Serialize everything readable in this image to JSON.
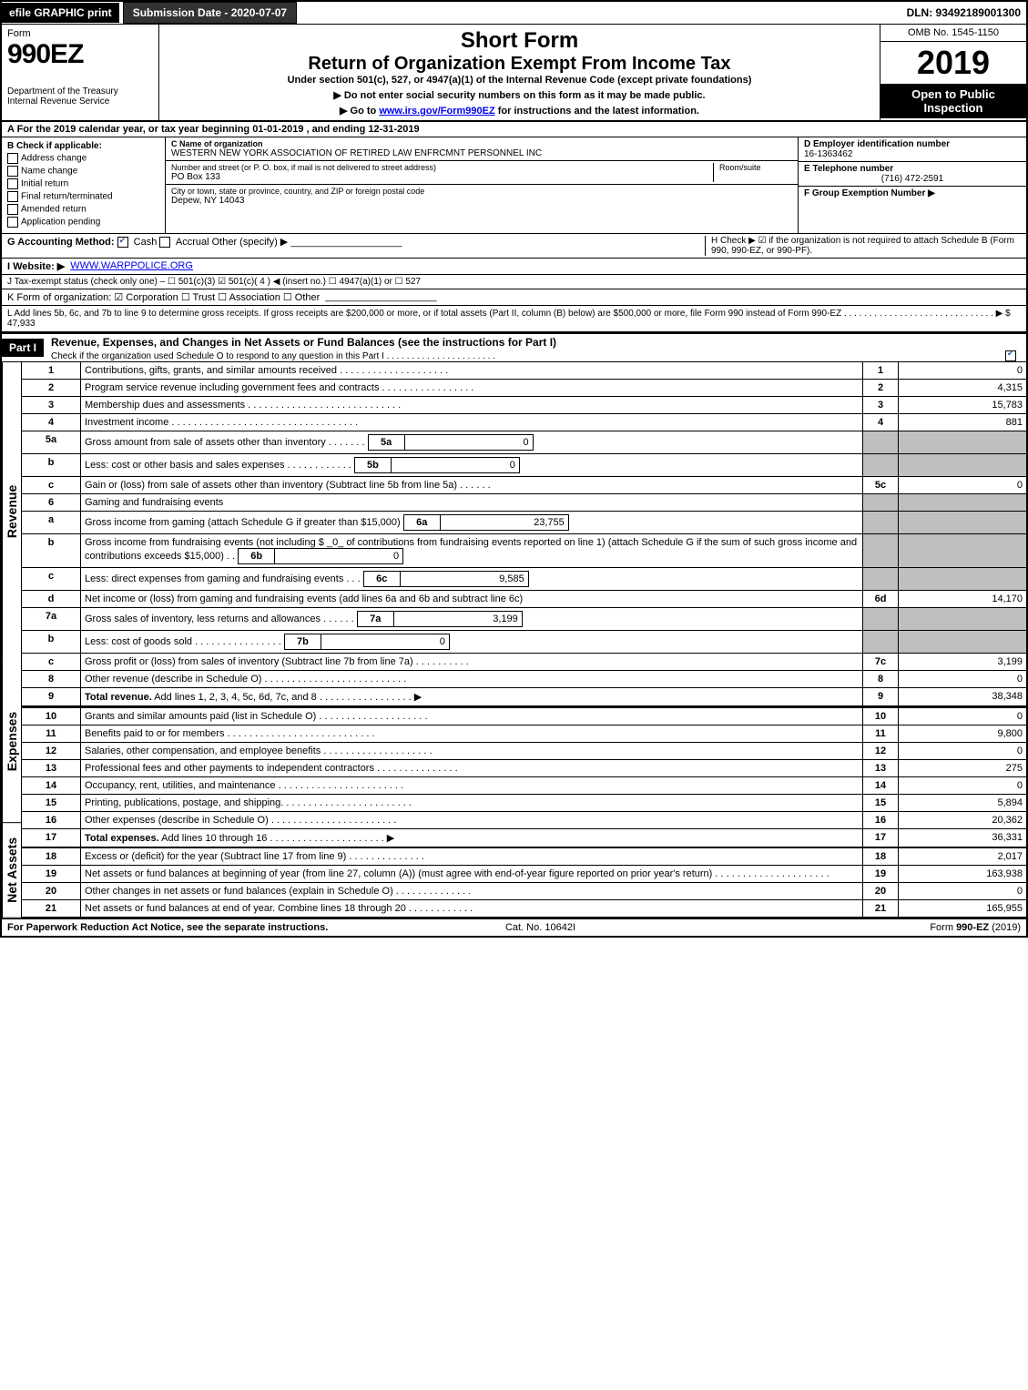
{
  "top": {
    "efile_label": "efile GRAPHIC print",
    "submission_label": "Submission Date - 2020-07-07",
    "dln": "DLN: 93492189001300"
  },
  "header": {
    "form_word": "Form",
    "form_number": "990EZ",
    "dept1": "Department of the Treasury",
    "dept2": "Internal Revenue Service",
    "short_form": "Short Form",
    "return_title": "Return of Organization Exempt From Income Tax",
    "under_section": "Under section 501(c), 527, or 4947(a)(1) of the Internal Revenue Code (except private foundations)",
    "no_ssn": "▶ Do not enter social security numbers on this form as it may be made public.",
    "go_to": "▶ Go to ",
    "go_to_link": "www.irs.gov/Form990EZ",
    "go_to_after": " for instructions and the latest information.",
    "omb": "OMB No. 1545-1150",
    "year": "2019",
    "open_to_public": "Open to Public Inspection"
  },
  "period": {
    "line_a": "A  For the 2019 calendar year, or tax year beginning 01-01-2019  , and ending 12-31-2019"
  },
  "checkB": {
    "heading": "B  Check if applicable:",
    "address_change": "Address change",
    "name_change": "Name change",
    "initial_return": "Initial return",
    "final_return": "Final return/terminated",
    "amended_return": "Amended return",
    "application_pending": "Application pending"
  },
  "org": {
    "c_label": "C Name of organization",
    "name": "WESTERN NEW YORK ASSOCIATION OF RETIRED LAW ENFRCMNT PERSONNEL INC",
    "street_label": "Number and street (or P. O. box, if mail is not delivered to street address)",
    "room_label": "Room/suite",
    "street": "PO Box 133",
    "city_label": "City or town, state or province, country, and ZIP or foreign postal code",
    "city": "Depew, NY  14043"
  },
  "right_boxes": {
    "d_label": "D Employer identification number",
    "ein": "16-1363462",
    "e_label": "E Telephone number",
    "phone": "(716) 472-2591",
    "f_label": "F Group Exemption Number  ▶"
  },
  "g": {
    "label": "G Accounting Method:",
    "cash": "Cash",
    "accrual": "Accrual",
    "other": "Other (specify) ▶"
  },
  "h": {
    "text": "H  Check ▶ ☑ if the organization is not required to attach Schedule B (Form 990, 990-EZ, or 990-PF)."
  },
  "i": {
    "label": "I Website: ▶",
    "url": "WWW.WARPPOLICE.ORG"
  },
  "j": {
    "text": "J Tax-exempt status (check only one) – ☐ 501(c)(3) ☑ 501(c)( 4 ) ◀ (insert no.) ☐ 4947(a)(1) or ☐ 527"
  },
  "k": {
    "text": "K Form of organization:  ☑ Corporation  ☐ Trust  ☐ Association  ☐ Other"
  },
  "l": {
    "text": "L Add lines 5b, 6c, and 7b to line 9 to determine gross receipts. If gross receipts are $200,000 or more, or if total assets (Part II, column (B) below) are $500,000 or more, file Form 990 instead of Form 990-EZ  .  .  .  .  .  .  .  .  .  .  .  .  .  .  .  .  .  .  .  .  .  .  .  .  .  .  .  .  .  .  ▶ $ 47,933"
  },
  "part1": {
    "label": "Part I",
    "title": "Revenue, Expenses, and Changes in Net Assets or Fund Balances (see the instructions for Part I)",
    "check_text": "Check if the organization used Schedule O to respond to any question in this Part I  .  .  .  .  .  .  .  .  .  .  .  .  .  .  .  .  .  .  .  .  .  .  "
  },
  "revenue_label": "Revenue",
  "expenses_label": "Expenses",
  "netassets_label": "Net Assets",
  "lines": {
    "1": {
      "num": "1",
      "desc": "Contributions, gifts, grants, and similar amounts received  .  .  .  .  .  .  .  .  .  .  .  .  .  .  .  .  .  .  .  .",
      "box": "1",
      "val": "0"
    },
    "2": {
      "num": "2",
      "desc": "Program service revenue including government fees and contracts  .  .  .  .  .  .  .  .  .  .  .  .  .  .  .  .  .",
      "box": "2",
      "val": "4,315"
    },
    "3": {
      "num": "3",
      "desc": "Membership dues and assessments  .  .  .  .  .  .  .  .  .  .  .  .  .  .  .  .  .  .  .  .  .  .  .  .  .  .  .  .",
      "box": "3",
      "val": "15,783"
    },
    "4": {
      "num": "4",
      "desc": "Investment income  .  .  .  .  .  .  .  .  .  .  .  .  .  .  .  .  .  .  .  .  .  .  .  .  .  .  .  .  .  .  .  .  .  .",
      "box": "4",
      "val": "881"
    },
    "5a": {
      "num": "5a",
      "desc": "Gross amount from sale of assets other than inventory  .  .  .  .  .  .  .",
      "sub": "5a",
      "subval": "0"
    },
    "5b": {
      "num": "b",
      "desc": "Less: cost or other basis and sales expenses  .  .  .  .  .  .  .  .  .  .  .  .",
      "sub": "5b",
      "subval": "0"
    },
    "5c": {
      "num": "c",
      "desc": "Gain or (loss) from sale of assets other than inventory (Subtract line 5b from line 5a)  .  .  .  .  .  .",
      "box": "5c",
      "val": "0"
    },
    "6": {
      "num": "6",
      "desc": "Gaming and fundraising events"
    },
    "6a": {
      "num": "a",
      "desc": "Gross income from gaming (attach Schedule G if greater than $15,000)",
      "sub": "6a",
      "subval": "23,755"
    },
    "6b": {
      "num": "b",
      "desc": "Gross income from fundraising events (not including $ _0_ of contributions from fundraising events reported on line 1) (attach Schedule G if the sum of such gross income and contributions exceeds $15,000)   .  .",
      "sub": "6b",
      "subval": "0"
    },
    "6c": {
      "num": "c",
      "desc": "Less: direct expenses from gaming and fundraising events       .  .  .",
      "sub": "6c",
      "subval": "9,585"
    },
    "6d": {
      "num": "d",
      "desc": "Net income or (loss) from gaming and fundraising events (add lines 6a and 6b and subtract line 6c)",
      "box": "6d",
      "val": "14,170"
    },
    "7a": {
      "num": "7a",
      "desc": "Gross sales of inventory, less returns and allowances  .  .  .  .  .  .",
      "sub": "7a",
      "subval": "3,199"
    },
    "7b": {
      "num": "b",
      "desc": "Less: cost of goods sold         .  .  .  .  .  .  .  .  .  .  .  .  .  .  .  .",
      "sub": "7b",
      "subval": "0"
    },
    "7c": {
      "num": "c",
      "desc": "Gross profit or (loss) from sales of inventory (Subtract line 7b from line 7a)  .  .  .  .  .  .  .  .  .  .",
      "box": "7c",
      "val": "3,199"
    },
    "8": {
      "num": "8",
      "desc": "Other revenue (describe in Schedule O)  .  .  .  .  .  .  .  .  .  .  .  .  .  .  .  .  .  .  .  .  .  .  .  .  .  .",
      "box": "8",
      "val": "0"
    },
    "9": {
      "num": "9",
      "desc": "Total revenue. Add lines 1, 2, 3, 4, 5c, 6d, 7c, and 8   .  .  .  .  .  .  .  .  .  .  .  .  .  .  .  .  .  ▶",
      "box": "9",
      "val": "38,348"
    },
    "10": {
      "num": "10",
      "desc": "Grants and similar amounts paid (list in Schedule O)  .  .  .  .  .  .  .  .  .  .  .  .  .  .  .  .  .  .  .  .",
      "box": "10",
      "val": "0"
    },
    "11": {
      "num": "11",
      "desc": "Benefits paid to or for members    .  .  .  .  .  .  .  .  .  .  .  .  .  .  .  .  .  .  .  .  .  .  .  .  .  .  .",
      "box": "11",
      "val": "9,800"
    },
    "12": {
      "num": "12",
      "desc": "Salaries, other compensation, and employee benefits  .  .  .  .  .  .  .  .  .  .  .  .  .  .  .  .  .  .  .  .",
      "box": "12",
      "val": "0"
    },
    "13": {
      "num": "13",
      "desc": "Professional fees and other payments to independent contractors  .  .  .  .  .  .  .  .  .  .  .  .  .  .  .",
      "box": "13",
      "val": "275"
    },
    "14": {
      "num": "14",
      "desc": "Occupancy, rent, utilities, and maintenance  .  .  .  .  .  .  .  .  .  .  .  .  .  .  .  .  .  .  .  .  .  .  .",
      "box": "14",
      "val": "0"
    },
    "15": {
      "num": "15",
      "desc": "Printing, publications, postage, and shipping.  .  .  .  .  .  .  .  .  .  .  .  .  .  .  .  .  .  .  .  .  .  .  .",
      "box": "15",
      "val": "5,894"
    },
    "16": {
      "num": "16",
      "desc": "Other expenses (describe in Schedule O)    .  .  .  .  .  .  .  .  .  .  .  .  .  .  .  .  .  .  .  .  .  .  .",
      "box": "16",
      "val": "20,362"
    },
    "17": {
      "num": "17",
      "desc": "Total expenses. Add lines 10 through 16    .  .  .  .  .  .  .  .  .  .  .  .  .  .  .  .  .  .  .  .  .  ▶",
      "box": "17",
      "val": "36,331"
    },
    "18": {
      "num": "18",
      "desc": "Excess or (deficit) for the year (Subtract line 17 from line 9)        .  .  .  .  .  .  .  .  .  .  .  .  .  .",
      "box": "18",
      "val": "2,017"
    },
    "19": {
      "num": "19",
      "desc": "Net assets or fund balances at beginning of year (from line 27, column (A)) (must agree with end-of-year figure reported on prior year's return)  .  .  .  .  .  .  .  .  .  .  .  .  .  .  .  .  .  .  .  .  .",
      "box": "19",
      "val": "163,938"
    },
    "20": {
      "num": "20",
      "desc": "Other changes in net assets or fund balances (explain in Schedule O)  .  .  .  .  .  .  .  .  .  .  .  .  .  .",
      "box": "20",
      "val": "0"
    },
    "21": {
      "num": "21",
      "desc": "Net assets or fund balances at end of year. Combine lines 18 through 20  .  .  .  .  .  .  .  .  .  .  .  .",
      "box": "21",
      "val": "165,955"
    }
  },
  "footer": {
    "pra": "For Paperwork Reduction Act Notice, see the separate instructions.",
    "cat": "Cat. No. 10642I",
    "form_ref": "Form 990-EZ (2019)"
  }
}
